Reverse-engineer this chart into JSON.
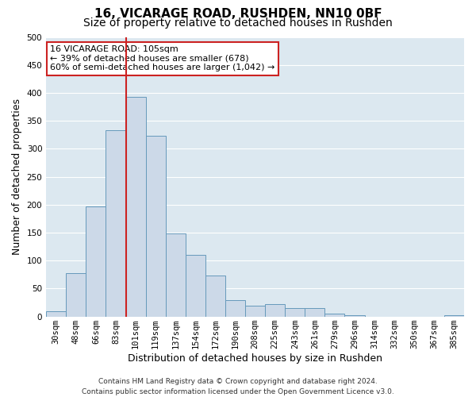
{
  "title": "16, VICARAGE ROAD, RUSHDEN, NN10 0BF",
  "subtitle": "Size of property relative to detached houses in Rushden",
  "xlabel": "Distribution of detached houses by size in Rushden",
  "ylabel": "Number of detached properties",
  "bar_labels": [
    "30sqm",
    "48sqm",
    "66sqm",
    "83sqm",
    "101sqm",
    "119sqm",
    "137sqm",
    "154sqm",
    "172sqm",
    "190sqm",
    "208sqm",
    "225sqm",
    "243sqm",
    "261sqm",
    "279sqm",
    "296sqm",
    "314sqm",
    "332sqm",
    "350sqm",
    "367sqm",
    "385sqm"
  ],
  "bar_values": [
    10,
    78,
    197,
    333,
    393,
    323,
    148,
    110,
    73,
    30,
    20,
    22,
    15,
    15,
    5,
    2,
    0,
    0,
    0,
    0,
    2
  ],
  "bar_color": "#ccd9e8",
  "bar_edge_color": "#6699bb",
  "vline_x_index": 4,
  "vline_color": "#cc2222",
  "ylim": [
    0,
    500
  ],
  "yticks": [
    0,
    50,
    100,
    150,
    200,
    250,
    300,
    350,
    400,
    450,
    500
  ],
  "annotation_title": "16 VICARAGE ROAD: 105sqm",
  "annotation_line1": "← 39% of detached houses are smaller (678)",
  "annotation_line2": "60% of semi-detached houses are larger (1,042) →",
  "annotation_box_facecolor": "#ffffff",
  "annotation_box_edgecolor": "#cc2222",
  "footer_line1": "Contains HM Land Registry data © Crown copyright and database right 2024.",
  "footer_line2": "Contains public sector information licensed under the Open Government Licence v3.0.",
  "fig_facecolor": "#ffffff",
  "axes_facecolor": "#dce8f0",
  "grid_color": "#ffffff",
  "title_fontsize": 11,
  "subtitle_fontsize": 10,
  "axis_label_fontsize": 9,
  "tick_fontsize": 7.5,
  "annotation_fontsize": 8,
  "footer_fontsize": 6.5
}
